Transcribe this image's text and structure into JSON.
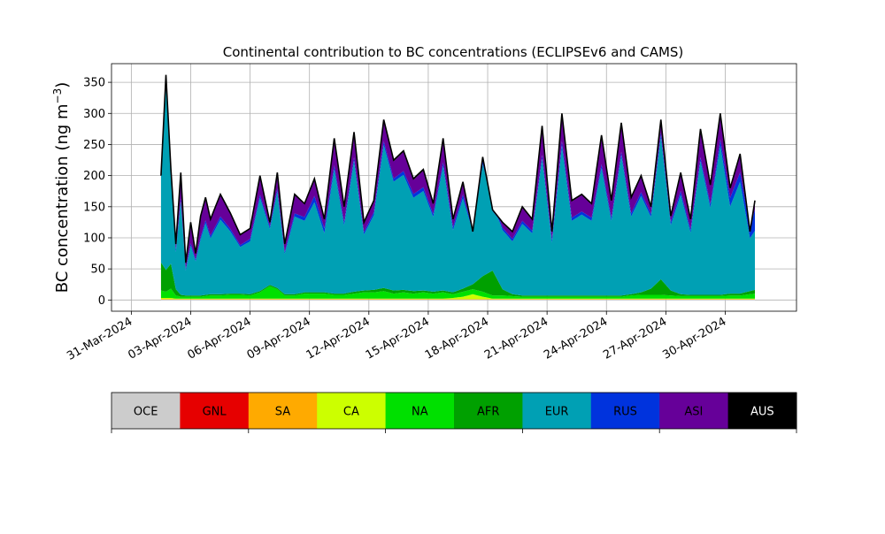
{
  "chart_data": {
    "type": "area",
    "stacked": true,
    "title": "Continental contribution to BC concentrations (ECLIPSEv6 and CAMS)",
    "xlabel": "",
    "ylabel": "BC concentration (ng m",
    "ylabel_sup": "−3",
    "ylabel_close": ")",
    "ylim": [
      -18,
      380
    ],
    "yticks": [
      0,
      50,
      100,
      150,
      200,
      250,
      300,
      350
    ],
    "x_start": "2024-03-30",
    "x_end": "2024-05-03",
    "xlim_days": [
      0,
      34.6
    ],
    "xticks": [
      "31-Mar-2024",
      "03-Apr-2024",
      "06-Apr-2024",
      "09-Apr-2024",
      "12-Apr-2024",
      "15-Apr-2024",
      "18-Apr-2024",
      "21-Apr-2024",
      "24-Apr-2024",
      "27-Apr-2024",
      "30-Apr-2024"
    ],
    "grid": true,
    "legend_position": "below (colorbar)",
    "series": [
      {
        "name": "OCE",
        "color": "#cccccc"
      },
      {
        "name": "GNL",
        "color": "#e60000"
      },
      {
        "name": "SA",
        "color": "#ffaa00"
      },
      {
        "name": "CA",
        "color": "#ccff00"
      },
      {
        "name": "NA",
        "color": "#00e000"
      },
      {
        "name": "AFR",
        "color": "#00a000"
      },
      {
        "name": "EUR",
        "color": "#00a0b4"
      },
      {
        "name": "RUS",
        "color": "#0033dd"
      },
      {
        "name": "ASI",
        "color": "#660099"
      },
      {
        "name": "AUS",
        "color": "#000000"
      }
    ],
    "keypoints": {
      "time": [
        "2024-04-01T12:00",
        "2024-04-01T18:00",
        "2024-04-02T00:00",
        "2024-04-02T06:00",
        "2024-04-02T12:00",
        "2024-04-02T18:00",
        "2024-04-03T00:00",
        "2024-04-03T06:00",
        "2024-04-03T12:00",
        "2024-04-03T18:00",
        "2024-04-04T00:00",
        "2024-04-04T12:00",
        "2024-04-05T00:00",
        "2024-04-05T12:00",
        "2024-04-06T00:00",
        "2024-04-06T12:00",
        "2024-04-07T00:00",
        "2024-04-07T09:00",
        "2024-04-07T18:00",
        "2024-04-08T06:00",
        "2024-04-08T18:00",
        "2024-04-09T06:00",
        "2024-04-09T18:00",
        "2024-04-10T06:00",
        "2024-04-10T18:00",
        "2024-04-11T06:00",
        "2024-04-11T18:00",
        "2024-04-12T06:00",
        "2024-04-12T18:00",
        "2024-04-13T06:00",
        "2024-04-13T18:00",
        "2024-04-14T06:00",
        "2024-04-14T18:00",
        "2024-04-15T06:00",
        "2024-04-15T18:00",
        "2024-04-16T06:00",
        "2024-04-16T18:00",
        "2024-04-17T06:00",
        "2024-04-17T18:00",
        "2024-04-18T06:00",
        "2024-04-18T18:00",
        "2024-04-19T06:00",
        "2024-04-19T18:00",
        "2024-04-20T06:00",
        "2024-04-20T18:00",
        "2024-04-21T06:00",
        "2024-04-21T18:00",
        "2024-04-22T06:00",
        "2024-04-22T18:00",
        "2024-04-23T06:00",
        "2024-04-23T18:00",
        "2024-04-24T06:00",
        "2024-04-24T18:00",
        "2024-04-25T06:00",
        "2024-04-25T18:00",
        "2024-04-26T06:00",
        "2024-04-26T18:00",
        "2024-04-27T06:00",
        "2024-04-27T18:00",
        "2024-04-28T06:00",
        "2024-04-28T18:00",
        "2024-04-29T06:00",
        "2024-04-29T18:00",
        "2024-04-30T06:00",
        "2024-04-30T18:00",
        "2024-05-01T06:00",
        "2024-05-01T12:00"
      ],
      "total": [
        200,
        362,
        210,
        90,
        205,
        60,
        125,
        75,
        135,
        165,
        130,
        170,
        140,
        105,
        115,
        200,
        125,
        205,
        90,
        170,
        155,
        195,
        130,
        260,
        150,
        270,
        125,
        160,
        290,
        225,
        240,
        195,
        210,
        155,
        260,
        130,
        190,
        110,
        230,
        145,
        125,
        110,
        150,
        130,
        280,
        110,
        300,
        160,
        170,
        155,
        265,
        160,
        285,
        165,
        200,
        150,
        290,
        135,
        205,
        130,
        275,
        185,
        300,
        180,
        235,
        110,
        160
      ],
      "eur": [
        140,
        300,
        140,
        60,
        150,
        40,
        80,
        55,
        90,
        115,
        90,
        120,
        100,
        75,
        85,
        150,
        90,
        155,
        65,
        125,
        115,
        145,
        95,
        200,
        110,
        210,
        90,
        120,
        230,
        175,
        185,
        150,
        160,
        120,
        200,
        100,
        145,
        85,
        180,
        110,
        95,
        85,
        115,
        100,
        220,
        85,
        240,
        120,
        130,
        120,
        205,
        120,
        225,
        125,
        155,
        115,
        230,
        105,
        160,
        100,
        215,
        140,
        240,
        140,
        180,
        85,
        95
      ],
      "afr": [
        45,
        35,
        40,
        10,
        3,
        2,
        2,
        2,
        2,
        2,
        2,
        2,
        2,
        2,
        2,
        2,
        2,
        2,
        2,
        2,
        2,
        2,
        2,
        2,
        2,
        3,
        3,
        4,
        5,
        5,
        4,
        4,
        3,
        3,
        3,
        3,
        5,
        8,
        25,
        40,
        10,
        3,
        2,
        2,
        2,
        2,
        2,
        2,
        2,
        2,
        2,
        2,
        2,
        2,
        4,
        10,
        25,
        8,
        3,
        2,
        2,
        2,
        2,
        3,
        3,
        5,
        6
      ],
      "na": [
        12,
        10,
        15,
        5,
        3,
        3,
        3,
        3,
        3,
        4,
        5,
        5,
        6,
        6,
        5,
        10,
        20,
        15,
        5,
        5,
        8,
        8,
        8,
        6,
        6,
        8,
        10,
        10,
        12,
        8,
        10,
        8,
        10,
        8,
        10,
        6,
        8,
        8,
        8,
        5,
        5,
        4,
        3,
        3,
        3,
        3,
        3,
        3,
        3,
        3,
        3,
        3,
        3,
        5,
        6,
        6,
        6,
        5,
        4,
        4,
        4,
        4,
        4,
        5,
        5,
        7,
        8
      ],
      "ca": [
        2,
        2,
        2,
        1,
        1,
        1,
        1,
        1,
        1,
        1,
        1,
        1,
        1,
        1,
        1,
        1,
        1,
        1,
        1,
        1,
        1,
        1,
        1,
        1,
        1,
        1,
        1,
        1,
        1,
        1,
        1,
        1,
        1,
        1,
        1,
        2,
        4,
        8,
        4,
        1,
        1,
        1,
        1,
        1,
        1,
        1,
        1,
        1,
        1,
        1,
        1,
        1,
        1,
        1,
        1,
        1,
        1,
        1,
        1,
        1,
        1,
        1,
        1,
        1,
        1,
        1,
        1
      ],
      "rus": [
        6,
        5,
        6,
        4,
        5,
        3,
        4,
        3,
        4,
        5,
        4,
        5,
        4,
        3,
        4,
        5,
        4,
        5,
        3,
        5,
        6,
        10,
        8,
        6,
        5,
        6,
        4,
        5,
        6,
        5,
        6,
        6,
        6,
        5,
        6,
        5,
        6,
        4,
        6,
        5,
        4,
        4,
        5,
        4,
        6,
        5,
        8,
        5,
        5,
        5,
        6,
        5,
        6,
        5,
        6,
        5,
        6,
        5,
        6,
        5,
        6,
        6,
        10,
        14,
        15,
        16,
        34
      ]
    }
  }
}
